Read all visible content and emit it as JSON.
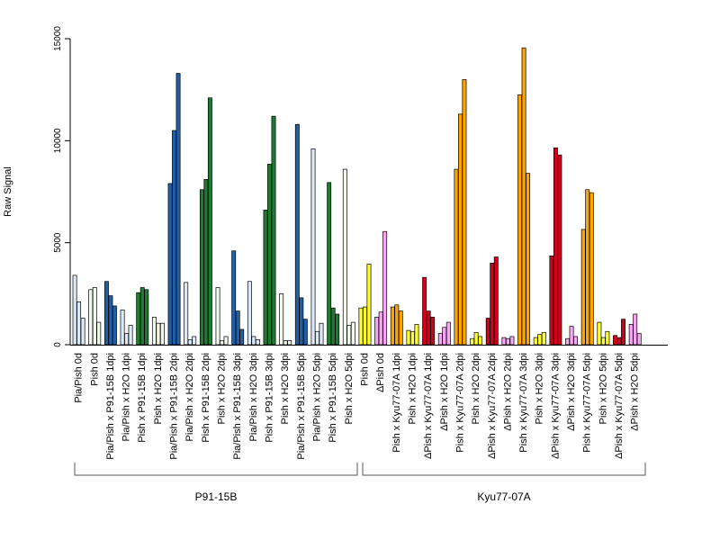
{
  "chart_data": {
    "type": "bar",
    "title": "",
    "xlabel": "",
    "ylabel": "Raw Signal",
    "ylim": [
      0,
      15000
    ],
    "y_ticks": [
      0,
      5000,
      10000,
      15000
    ],
    "grid": false,
    "legend": "none",
    "categories": [
      "Pia/Pish 0d",
      "Pish 0d",
      "Pia/Pish x P91-15B 1dpi",
      "Pia/Pish x H2O 1dpi",
      "Pish x P91-15B 1dpi",
      "Pish x H2O 1dpi",
      "Pia/Pish x P91-15B 2dpi",
      "Pia/Pish x H2O 2dpi",
      "Pish x P91-15B 2dpi",
      "Pish x H2O 2dpi",
      "Pia/Pish x P91-15B 3dpi",
      "Pia/Pish x H2O 3dpi",
      "Pish x P91-15B 3dpi",
      "Pish x H2O 3dpi",
      "Pia/Pish x P91-15B 5dpi",
      "Pia/Pish x H2O 5dpi",
      "Pish x P91-15B 5dpi",
      "Pish x H2O 5dpi",
      "Pish 0d",
      "ΔPish 0d",
      "Pish x Kyu77-07A 1dpi",
      "Pish x H2O 1dpi",
      "ΔPish x Kyu77-07A 1dpi",
      "ΔPish x H2O 1dpi",
      "Pish x Kyu77-07A 2dpi",
      "Pish x H2O 2dpi",
      "ΔPish x Kyu77-07A 2dpi",
      "ΔPish x H2O 2dpi",
      "Pish x Kyu77-07A 3dpi",
      "Pish x H2O 3dpi",
      "ΔPish x Kyu77-07A 3dpi",
      "ΔPish x H2O 3dpi",
      "Pish x Kyu77-07A 5dpi",
      "Pish x H2O 5dpi",
      "ΔPish x Kyu77-07A 5dpi",
      "ΔPish x H2O 5dpi"
    ],
    "bar_colors": [
      "#dce9f7",
      "#f2f9ec",
      "#2060a8",
      "#dce9f7",
      "#1f7a32",
      "#f2f9ec",
      "#2060a8",
      "#dce9f7",
      "#1f7a32",
      "#f2f9ec",
      "#2060a8",
      "#dce9f7",
      "#1f7a32",
      "#f2f9ec",
      "#2060a8",
      "#dce9f7",
      "#1f7a32",
      "#f2f9ec",
      "#ffff33",
      "#f7a6f2",
      "#ffa500",
      "#ffff33",
      "#d0021b",
      "#f7a6f2",
      "#ffa500",
      "#ffff33",
      "#d0021b",
      "#f7a6f2",
      "#ffa500",
      "#ffff33",
      "#d0021b",
      "#f7a6f2",
      "#ffa500",
      "#ffff33",
      "#d0021b",
      "#f7a6f2"
    ],
    "values": [
      [
        3400,
        2100,
        1300
      ],
      [
        2700,
        2800,
        1100
      ],
      [
        3100,
        2400,
        1900
      ],
      [
        1700,
        550,
        950
      ],
      [
        2550,
        2800,
        2700
      ],
      [
        1350,
        1050,
        1050
      ],
      [
        7900,
        10500,
        13300
      ],
      [
        3050,
        250,
        400
      ],
      [
        7600,
        8100,
        12100
      ],
      [
        2800,
        200,
        400
      ],
      [
        4600,
        1650,
        750
      ],
      [
        3100,
        400,
        250
      ],
      [
        6600,
        8850,
        11200
      ],
      [
        2500,
        200,
        200
      ],
      [
        10800,
        2300,
        1250
      ],
      [
        9600,
        650,
        1050
      ],
      [
        7950,
        1800,
        1500
      ],
      [
        8600,
        950,
        1100
      ],
      [
        1800,
        1850,
        3950
      ],
      [
        1350,
        1600,
        5550
      ],
      [
        1850,
        1950,
        1650
      ],
      [
        700,
        650,
        1000
      ],
      [
        3300,
        1650,
        1350
      ],
      [
        550,
        850,
        1100
      ],
      [
        8600,
        11300,
        13000
      ],
      [
        300,
        600,
        400
      ],
      [
        1300,
        4000,
        4300
      ],
      [
        350,
        300,
        400
      ],
      [
        12250,
        14550,
        8400
      ],
      [
        350,
        500,
        600
      ],
      [
        4350,
        9650,
        9300
      ],
      [
        300,
        900,
        400
      ],
      [
        5650,
        7600,
        7450
      ],
      [
        1100,
        350,
        650
      ],
      [
        450,
        350,
        1250
      ],
      [
        1000,
        1500,
        550
      ]
    ],
    "groups": [
      {
        "label": "P91-15B",
        "start": 0,
        "end": 17
      },
      {
        "label": "Kyu77-07A",
        "start": 18,
        "end": 35
      }
    ]
  }
}
